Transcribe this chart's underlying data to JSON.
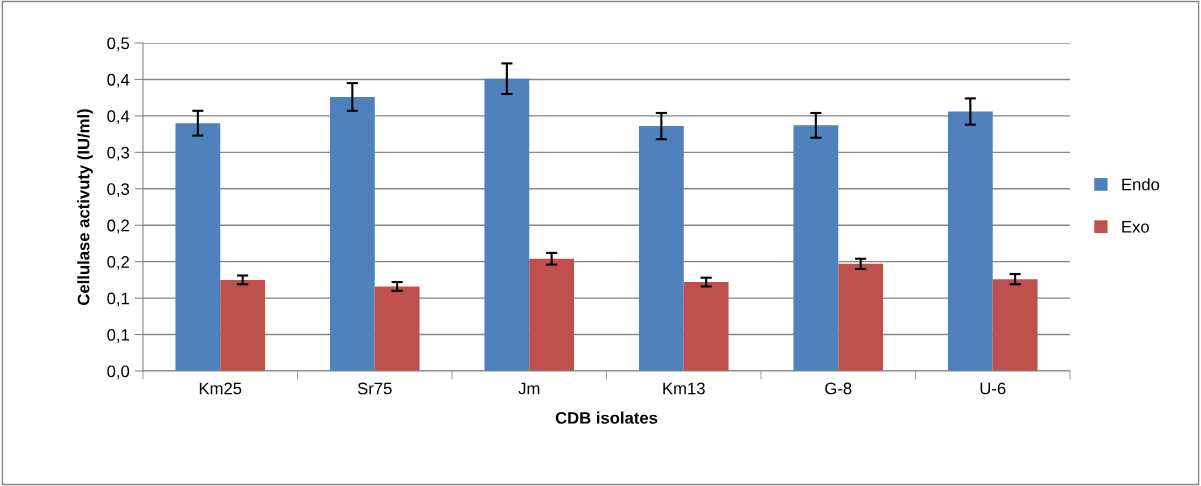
{
  "chart_data": {
    "type": "bar",
    "xlabel": "CDB isolates",
    "ylabel": "Cellulase activuty (IU/ml)",
    "categories": [
      "Km25",
      "Sr75",
      "Jm",
      "Km13",
      "G-8",
      "U-6"
    ],
    "series": [
      {
        "name": "Endo",
        "color": "#4f81bd",
        "values": [
          0.34,
          0.376,
          0.401,
          0.336,
          0.337,
          0.356
        ],
        "errors": [
          0.017,
          0.019,
          0.021,
          0.018,
          0.017,
          0.018
        ]
      },
      {
        "name": "Exo",
        "color": "#c0504d",
        "values": [
          0.125,
          0.116,
          0.154,
          0.122,
          0.147,
          0.126
        ],
        "errors": [
          0.006,
          0.006,
          0.008,
          0.006,
          0.007,
          0.007
        ]
      }
    ],
    "ylim": [
      0,
      0.45
    ],
    "yticks": [
      {
        "value": 0,
        "label": "0,0"
      },
      {
        "value": 0.05,
        "label": "0,1"
      },
      {
        "value": 0.1,
        "label": "0,1"
      },
      {
        "value": 0.15,
        "label": "0,2"
      },
      {
        "value": 0.2,
        "label": "0,2"
      },
      {
        "value": 0.25,
        "label": "0,3"
      },
      {
        "value": 0.3,
        "label": "0,3"
      },
      {
        "value": 0.35,
        "label": "0,4"
      },
      {
        "value": 0.4,
        "label": "0,4"
      },
      {
        "value": 0.45,
        "label": "0,5"
      }
    ],
    "grid": "y",
    "legend": "right"
  }
}
